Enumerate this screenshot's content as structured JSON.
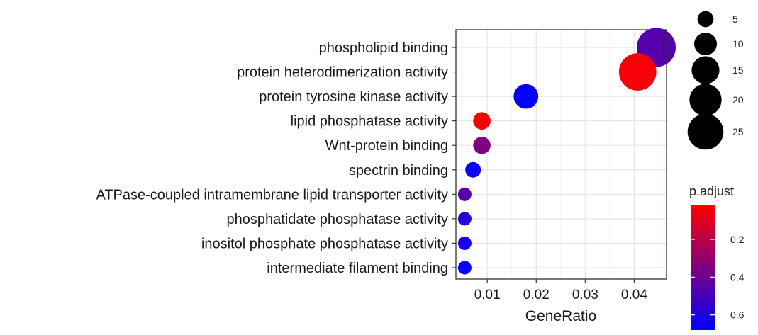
{
  "chart_data": {
    "type": "scatter",
    "subtype": "dot-plot",
    "xlabel": "GeneRatio",
    "ylabel": "",
    "xlim": [
      0.0036,
      0.0466
    ],
    "x_ticks": [
      0.01,
      0.02,
      0.03,
      0.04
    ],
    "x_tick_labels": [
      "0.01",
      "0.02",
      "0.03",
      "0.04"
    ],
    "grid": true,
    "categories": [
      "phospholipid binding",
      "protein heterodimerization activity",
      "protein tyrosine kinase activity",
      "lipid phosphatase activity",
      "Wnt-protein binding",
      "spectrin binding",
      "ATPase-coupled intramembrane lipid transporter activity",
      "phosphatidate phosphatase activity",
      "inositol phosphate phosphatase activity",
      "intermediate filament binding"
    ],
    "points": [
      {
        "term": "phospholipid binding",
        "gene_ratio": 0.0445,
        "count": 25,
        "p_adjust": 0.46
      },
      {
        "term": "protein heterodimerization activity",
        "gene_ratio": 0.0407,
        "count": 23,
        "p_adjust": 0.04
      },
      {
        "term": "protein tyrosine kinase activity",
        "gene_ratio": 0.0179,
        "count": 10,
        "p_adjust": 0.67
      },
      {
        "term": "lipid phosphatase activity",
        "gene_ratio": 0.0089,
        "count": 5,
        "p_adjust": 0.04
      },
      {
        "term": "Wnt-protein binding",
        "gene_ratio": 0.0089,
        "count": 5,
        "p_adjust": 0.35
      },
      {
        "term": "spectrin binding",
        "gene_ratio": 0.0071,
        "count": 4,
        "p_adjust": 0.66
      },
      {
        "term": "ATPase-coupled intramembrane lipid transporter activity",
        "gene_ratio": 0.0054,
        "count": 3,
        "p_adjust": 0.45
      },
      {
        "term": "phosphatidate phosphatase activity",
        "gene_ratio": 0.0054,
        "count": 3,
        "p_adjust": 0.58
      },
      {
        "term": "inositol phosphate phosphatase activity",
        "gene_ratio": 0.0054,
        "count": 3,
        "p_adjust": 0.62
      },
      {
        "term": "intermediate filament binding",
        "gene_ratio": 0.0054,
        "count": 3,
        "p_adjust": 0.67
      }
    ],
    "size_legend": {
      "title": "",
      "values": [
        5,
        10,
        15,
        20,
        25
      ],
      "labels": [
        "5",
        "10",
        "15",
        "20",
        "25"
      ]
    },
    "color_legend": {
      "title": "p.adjust",
      "range": [
        0.02,
        0.68
      ],
      "ticks": [
        0.2,
        0.4,
        0.6
      ],
      "tick_labels": [
        "0.2",
        "0.4",
        "0.6"
      ],
      "low_color": "#ff0000",
      "high_color": "#0000ff"
    }
  }
}
